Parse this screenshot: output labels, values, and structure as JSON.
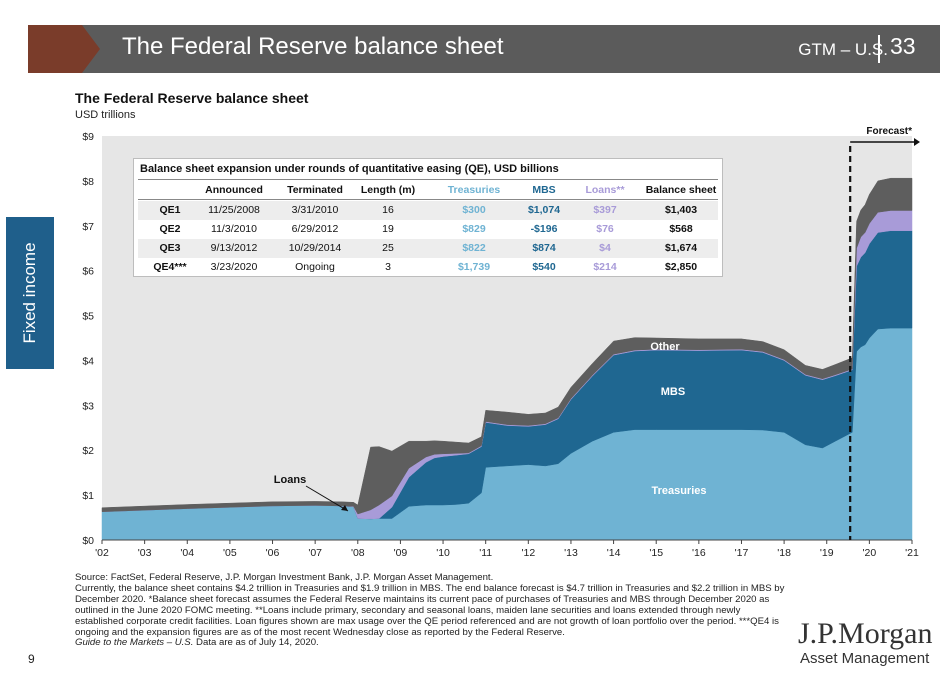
{
  "header": {
    "title": "The Federal Reserve balance sheet",
    "subtitle": "GTM – U.S.",
    "slide_number": "33"
  },
  "side_tab": {
    "label": "Fixed income"
  },
  "colors": {
    "treasuries": "#6fb3d3",
    "mbs": "#1f6791",
    "loans": "#a89bd8",
    "other": "#5e5e5e",
    "banner": "#5b5b5b",
    "chevron": "#7a3c2a",
    "side_tab": "#1f5f8b",
    "plot_bg": "#e6e6e6"
  },
  "chart_data": {
    "type": "area",
    "title": "The Federal Reserve balance sheet",
    "subtitle": "USD trillions",
    "x_ticks": [
      "'02",
      "'03",
      "'04",
      "'05",
      "'06",
      "'07",
      "'08",
      "'09",
      "'10",
      "'11",
      "'12",
      "'13",
      "'14",
      "'15",
      "'16",
      "'17",
      "'18",
      "'19",
      "'20",
      "'21"
    ],
    "y_ticks": [
      "$0",
      "$1",
      "$2",
      "$3",
      "$4",
      "$5",
      "$6",
      "$7",
      "$8",
      "$9"
    ],
    "ylim": [
      0,
      9
    ],
    "xlim": [
      2002,
      2021
    ],
    "stacked": true,
    "x": [
      2002,
      2004,
      2006,
      2007,
      2007.6,
      2007.9,
      2008.0,
      2008.3,
      2008.5,
      2008.8,
      2009.2,
      2009.6,
      2009.8,
      2010.0,
      2010.3,
      2010.6,
      2010.9,
      2011.0,
      2011.5,
      2012.0,
      2012.4,
      2012.7,
      2013.0,
      2013.5,
      2014.0,
      2014.5,
      2015,
      2016,
      2017,
      2017.5,
      2018,
      2018.5,
      2018.9,
      2019.2,
      2019.6,
      2019.7,
      2019.8,
      2019.9,
      2020.0,
      2020.2,
      2020.5,
      2021
    ],
    "series": [
      {
        "name": "Treasuries",
        "values": [
          0.63,
          0.7,
          0.76,
          0.77,
          0.76,
          0.74,
          0.48,
          0.47,
          0.48,
          0.48,
          0.75,
          0.78,
          0.78,
          0.78,
          0.79,
          0.82,
          1.05,
          1.62,
          1.65,
          1.68,
          1.65,
          1.7,
          1.93,
          2.2,
          2.4,
          2.46,
          2.46,
          2.46,
          2.46,
          2.45,
          2.4,
          2.12,
          2.05,
          2.2,
          2.4,
          4.2,
          4.3,
          4.35,
          4.5,
          4.7,
          4.72,
          4.72
        ]
      },
      {
        "name": "MBS",
        "values": [
          0,
          0,
          0,
          0,
          0,
          0,
          0,
          0,
          0,
          0.25,
          0.65,
          0.95,
          1.05,
          1.08,
          1.1,
          1.1,
          1.03,
          1.0,
          0.9,
          0.85,
          0.92,
          1.0,
          1.2,
          1.45,
          1.72,
          1.75,
          1.77,
          1.76,
          1.77,
          1.73,
          1.6,
          1.55,
          1.52,
          1.46,
          1.39,
          1.9,
          2.0,
          2.05,
          2.1,
          2.15,
          2.17,
          2.17
        ]
      },
      {
        "name": "Loans",
        "values": [
          0,
          0,
          0,
          0,
          0,
          0.01,
          0.1,
          0.2,
          0.3,
          0.25,
          0.2,
          0.12,
          0.08,
          0.06,
          0.04,
          0.02,
          0.02,
          0.02,
          0.02,
          0.02,
          0.02,
          0.02,
          0.02,
          0.02,
          0.02,
          0.02,
          0.02,
          0.02,
          0.02,
          0.02,
          0.02,
          0.02,
          0.02,
          0.02,
          0.02,
          0.4,
          0.45,
          0.45,
          0.45,
          0.45,
          0.45,
          0.45
        ]
      },
      {
        "name": "Other",
        "values": [
          0.09,
          0.09,
          0.09,
          0.09,
          0.09,
          0.09,
          0.2,
          1.4,
          1.3,
          1.0,
          0.6,
          0.35,
          0.3,
          0.28,
          0.25,
          0.22,
          0.2,
          0.25,
          0.28,
          0.25,
          0.24,
          0.24,
          0.25,
          0.26,
          0.29,
          0.28,
          0.25,
          0.24,
          0.23,
          0.22,
          0.22,
          0.2,
          0.21,
          0.23,
          0.25,
          0.6,
          0.6,
          0.62,
          0.65,
          0.7,
          0.72,
          0.72
        ]
      }
    ],
    "series_labels": {
      "treasuries": "Treasuries",
      "mbs": "MBS",
      "other": "Other",
      "loans": "Loans"
    },
    "forecast": {
      "label": "Forecast*",
      "start_x": 2019.55
    },
    "table": {
      "title": "Balance sheet expansion under rounds of quantitative easing (QE), USD billions",
      "columns": [
        "",
        "Announced",
        "Terminated",
        "Length (m)",
        "Treasuries",
        "MBS",
        "Loans**",
        "Balance sheet"
      ],
      "rows": [
        [
          "QE1",
          "11/25/2008",
          "3/31/2010",
          "16",
          "$300",
          "$1,074",
          "$397",
          "$1,403"
        ],
        [
          "QE2",
          "11/3/2010",
          "6/29/2012",
          "19",
          "$829",
          "-$196",
          "$76",
          "$568"
        ],
        [
          "QE3",
          "9/13/2012",
          "10/29/2014",
          "25",
          "$822",
          "$874",
          "$4",
          "$1,674"
        ],
        [
          "QE4***",
          "3/23/2020",
          "Ongoing",
          "3",
          "$1,739",
          "$540",
          "$214",
          "$2,850"
        ]
      ]
    }
  },
  "footnotes": {
    "source": "Source: FactSet, Federal Reserve, J.P. Morgan Investment Bank, J.P. Morgan Asset Management.",
    "note": "Currently, the balance sheet contains $4.2 trillion in Treasuries and $1.9 trillion in MBS. The end balance forecast is $4.7 trillion in Treasuries and $2.2 trillion in MBS by December 2020. *Balance sheet forecast assumes the Federal Reserve maintains its current pace of purchases of Treasuries and MBS through December 2020 as outlined in the June 2020 FOMC meeting. **Loans include primary, secondary and seasonal loans, maiden lane securities and loans extended through newly established corporate credit facilities. Loan figures shown are max usage over the QE period referenced and are not growth of loan portfolio over the period. ***QE4 is ongoing and the expansion figures are as of the most recent Wednesday close as reported by the Federal Reserve.",
    "guide": "Guide to the Markets – U.S.",
    "date": " Data are as of July 14, 2020."
  },
  "page_number": "9",
  "logo": {
    "line1": "J.P.Morgan",
    "line2": "Asset Management"
  }
}
